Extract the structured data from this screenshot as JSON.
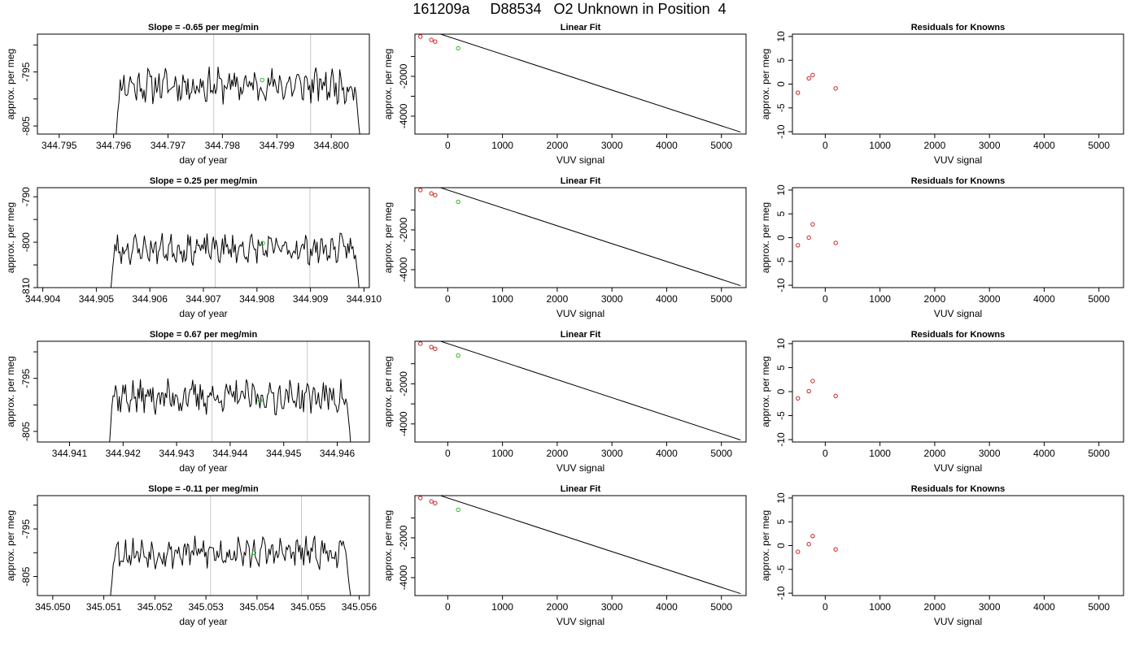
{
  "page_title": "161209a     D88534   O2 Unknown in Position  4",
  "style": {
    "line_color": "#000000",
    "known_point_color": "#cc2222",
    "unknown_point_color": "#22bb22",
    "vline_color": "#c8c8c8"
  },
  "chart_data": [
    {
      "type": "line",
      "title": "Slope =  -0.65  per meg/min",
      "xlabel": "day of year",
      "ylabel": "approx. per meg",
      "xlim": [
        344.7946,
        344.8007
      ],
      "ylim": [
        -806.5,
        -788
      ],
      "xticks": [
        "344.795",
        "344.796",
        "344.797",
        "344.798",
        "344.799",
        "344.800"
      ],
      "xtick_values": [
        344.795,
        344.796,
        344.797,
        344.798,
        344.799,
        344.8
      ],
      "yticks": [
        "-795",
        "-805"
      ],
      "ytick_values": [
        -795,
        -805
      ],
      "yticks_minor": [
        -790,
        -800
      ],
      "vlines": [
        344.79784,
        344.79962
      ],
      "x_start": 344.79596,
      "x_end": 344.80057,
      "base": -797.5,
      "seed": 11,
      "unknown_point": {
        "x": 344.79873,
        "y": -796.5
      }
    },
    {
      "type": "line",
      "title": "Slope =  0.25  per meg/min",
      "xlabel": "day of year",
      "ylabel": "approx. per meg",
      "xlim": [
        344.9039,
        344.9101
      ],
      "ylim": [
        -810,
        -788
      ],
      "xticks": [
        "344.904",
        "344.905",
        "344.906",
        "344.907",
        "344.908",
        "344.909",
        "344.910"
      ],
      "xtick_values": [
        344.904,
        344.905,
        344.906,
        344.907,
        344.908,
        344.909,
        344.91
      ],
      "yticks": [
        "-790",
        "-800",
        "-810"
      ],
      "ytick_values": [
        -790,
        -800,
        -810
      ],
      "yticks_minor": [
        -795,
        -805
      ],
      "vlines": [
        344.90722,
        344.90899
      ],
      "x_start": 344.90518,
      "x_end": 344.90996,
      "base": -801.5,
      "seed": 23,
      "unknown_point": {
        "x": 344.90811,
        "y": -800.2
      }
    },
    {
      "type": "line",
      "title": "Slope =  0.67  per meg/min",
      "xlabel": "day of year",
      "ylabel": "approx. per meg",
      "xlim": [
        344.9404,
        344.9466
      ],
      "ylim": [
        -807,
        -788
      ],
      "xticks": [
        "344.941",
        "344.942",
        "344.943",
        "344.944",
        "344.945",
        "344.946"
      ],
      "xtick_values": [
        344.941,
        344.942,
        344.943,
        344.944,
        344.945,
        344.946
      ],
      "yticks": [
        "-795",
        "-805"
      ],
      "ytick_values": [
        -795,
        -805
      ],
      "yticks_minor": [
        -790,
        -800
      ],
      "vlines": [
        344.94366,
        344.94544
      ],
      "x_start": 344.94165,
      "x_end": 344.9463,
      "base": -798.5,
      "seed": 37,
      "unknown_point": {
        "x": 344.94456,
        "y": -799.2
      }
    },
    {
      "type": "line",
      "title": "Slope =  -0.11  per meg/min",
      "xlabel": "day of year",
      "ylabel": "approx. per meg",
      "xlim": [
        345.0497,
        345.0562
      ],
      "ylim": [
        -809,
        -788
      ],
      "xticks": [
        "345.050",
        "345.051",
        "345.052",
        "345.053",
        "345.054",
        "345.055",
        "345.056"
      ],
      "xtick_values": [
        345.05,
        345.051,
        345.052,
        345.053,
        345.054,
        345.055,
        345.056
      ],
      "yticks": [
        "-795",
        "-805"
      ],
      "ytick_values": [
        -795,
        -805
      ],
      "yticks_minor": [
        -790,
        -800
      ],
      "vlines": [
        345.05309,
        345.05487
      ],
      "x_start": 345.05104,
      "x_end": 345.05588,
      "base": -800,
      "seed": 53,
      "unknown_point": {
        "x": 345.05394,
        "y": -800
      }
    },
    {
      "type": "scatter",
      "title": "Linear Fit",
      "xlabel": "VUV signal",
      "ylabel": "approx. per meg",
      "xlim": [
        -600,
        5450
      ],
      "ylim": [
        -4900,
        120
      ],
      "xticks": [
        "0",
        "1000",
        "2000",
        "3000",
        "4000",
        "5000"
      ],
      "xtick_values": [
        0,
        1000,
        2000,
        3000,
        4000,
        5000
      ],
      "yticks": [
        "-2000",
        "-4000"
      ],
      "ytick_values": [
        -2000,
        -4000
      ],
      "yticks_minor": [
        -1000,
        -3000
      ],
      "line": [
        [
          -500,
          450
        ],
        [
          5350,
          -4800
        ]
      ],
      "known": [
        [
          -500,
          0
        ],
        [
          -300,
          -170
        ],
        [
          -230,
          -255
        ]
      ],
      "unknown": [
        [
          190,
          -590
        ]
      ]
    },
    {
      "type": "scatter",
      "title": "Linear Fit",
      "xlabel": "VUV signal",
      "ylabel": "approx. per meg",
      "xlim": [
        -600,
        5450
      ],
      "ylim": [
        -4900,
        120
      ],
      "xticks": [
        "0",
        "1000",
        "2000",
        "3000",
        "4000",
        "5000"
      ],
      "xtick_values": [
        0,
        1000,
        2000,
        3000,
        4000,
        5000
      ],
      "yticks": [
        "-2000",
        "-4000"
      ],
      "ytick_values": [
        -2000,
        -4000
      ],
      "yticks_minor": [
        -1000,
        -3000
      ],
      "line": [
        [
          -500,
          450
        ],
        [
          5350,
          -4800
        ]
      ],
      "known": [
        [
          -500,
          0
        ],
        [
          -300,
          -170
        ],
        [
          -230,
          -255
        ]
      ],
      "unknown": [
        [
          190,
          -590
        ]
      ]
    },
    {
      "type": "scatter",
      "title": "Linear Fit",
      "xlabel": "VUV signal",
      "ylabel": "approx. per meg",
      "xlim": [
        -600,
        5450
      ],
      "ylim": [
        -4900,
        120
      ],
      "xticks": [
        "0",
        "1000",
        "2000",
        "3000",
        "4000",
        "5000"
      ],
      "xtick_values": [
        0,
        1000,
        2000,
        3000,
        4000,
        5000
      ],
      "yticks": [
        "-2000",
        "-4000"
      ],
      "ytick_values": [
        -2000,
        -4000
      ],
      "yticks_minor": [
        -1000,
        -3000
      ],
      "line": [
        [
          -500,
          450
        ],
        [
          5350,
          -4800
        ]
      ],
      "known": [
        [
          -500,
          0
        ],
        [
          -300,
          -170
        ],
        [
          -230,
          -255
        ]
      ],
      "unknown": [
        [
          190,
          -590
        ]
      ]
    },
    {
      "type": "scatter",
      "title": "Linear Fit",
      "xlabel": "VUV signal",
      "ylabel": "approx. per meg",
      "xlim": [
        -600,
        5450
      ],
      "ylim": [
        -4900,
        120
      ],
      "xticks": [
        "0",
        "1000",
        "2000",
        "3000",
        "4000",
        "5000"
      ],
      "xtick_values": [
        0,
        1000,
        2000,
        3000,
        4000,
        5000
      ],
      "yticks": [
        "-2000",
        "-4000"
      ],
      "ytick_values": [
        -2000,
        -4000
      ],
      "yticks_minor": [
        -1000,
        -3000
      ],
      "line": [
        [
          -500,
          450
        ],
        [
          5350,
          -4800
        ]
      ],
      "known": [
        [
          -500,
          0
        ],
        [
          -300,
          -170
        ],
        [
          -230,
          -255
        ]
      ],
      "unknown": [
        [
          190,
          -590
        ]
      ]
    },
    {
      "type": "scatter",
      "title": "Residuals for Knowns",
      "xlabel": "VUV signal",
      "ylabel": "approx. per meg",
      "xlim": [
        -600,
        5450
      ],
      "ylim": [
        -10.5,
        10.5
      ],
      "xticks": [
        "0",
        "1000",
        "2000",
        "3000",
        "4000",
        "5000"
      ],
      "xtick_values": [
        0,
        1000,
        2000,
        3000,
        4000,
        5000
      ],
      "yticks": [
        "-10",
        "-5",
        "0",
        "5",
        "10"
      ],
      "ytick_values": [
        -10,
        -5,
        0,
        5,
        10
      ],
      "known": [
        [
          -500,
          -1.8
        ],
        [
          -300,
          1.2
        ],
        [
          -230,
          1.9
        ],
        [
          190,
          -0.9
        ]
      ]
    },
    {
      "type": "scatter",
      "title": "Residuals for Knowns",
      "xlabel": "VUV signal",
      "ylabel": "approx. per meg",
      "xlim": [
        -600,
        5450
      ],
      "ylim": [
        -10.5,
        10.5
      ],
      "xticks": [
        "0",
        "1000",
        "2000",
        "3000",
        "4000",
        "5000"
      ],
      "xtick_values": [
        0,
        1000,
        2000,
        3000,
        4000,
        5000
      ],
      "yticks": [
        "-10",
        "-5",
        "0",
        "5",
        "10"
      ],
      "ytick_values": [
        -10,
        -5,
        0,
        5,
        10
      ],
      "known": [
        [
          -500,
          -1.6
        ],
        [
          -300,
          0
        ],
        [
          -230,
          2.8
        ],
        [
          190,
          -1.1
        ]
      ]
    },
    {
      "type": "scatter",
      "title": "Residuals for Knowns",
      "xlabel": "VUV signal",
      "ylabel": "approx. per meg",
      "xlim": [
        -600,
        5450
      ],
      "ylim": [
        -10.5,
        10.5
      ],
      "xticks": [
        "0",
        "1000",
        "2000",
        "3000",
        "4000",
        "5000"
      ],
      "xtick_values": [
        0,
        1000,
        2000,
        3000,
        4000,
        5000
      ],
      "yticks": [
        "-10",
        "-5",
        "0",
        "5",
        "10"
      ],
      "ytick_values": [
        -10,
        -5,
        0,
        5,
        10
      ],
      "known": [
        [
          -500,
          -1.4
        ],
        [
          -300,
          0.1
        ],
        [
          -230,
          2.2
        ],
        [
          190,
          -0.9
        ]
      ]
    },
    {
      "type": "scatter",
      "title": "Residuals for Knowns",
      "xlabel": "VUV signal",
      "ylabel": "approx. per meg",
      "xlim": [
        -600,
        5450
      ],
      "ylim": [
        -10.5,
        10.5
      ],
      "xticks": [
        "0",
        "1000",
        "2000",
        "3000",
        "4000",
        "5000"
      ],
      "xtick_values": [
        0,
        1000,
        2000,
        3000,
        4000,
        5000
      ],
      "yticks": [
        "-10",
        "-5",
        "0",
        "5",
        "10"
      ],
      "ytick_values": [
        -10,
        -5,
        0,
        5,
        10
      ],
      "known": [
        [
          -500,
          -1.3
        ],
        [
          -300,
          0.3
        ],
        [
          -230,
          2.0
        ],
        [
          190,
          -0.8
        ]
      ]
    }
  ]
}
